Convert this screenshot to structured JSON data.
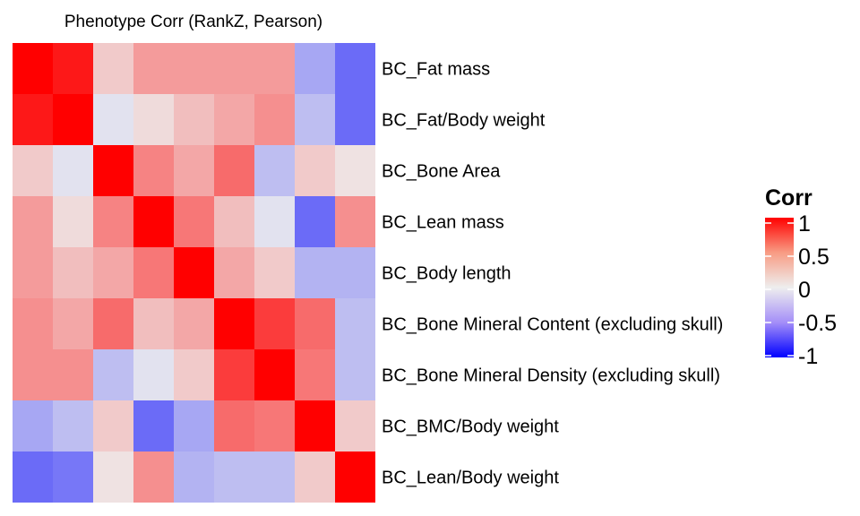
{
  "chart_data": {
    "type": "heatmap",
    "title": "Phenotype Corr (RankZ, Pearson)",
    "rows": [
      "BC_Fat mass",
      "BC_Fat/Body weight",
      "BC_Bone Area",
      "BC_Lean mass",
      "BC_Body length",
      "BC_Bone Mineral Content (excluding skull)",
      "BC_Bone Mineral Density (excluding skull)",
      "BC_BMC/Body weight",
      "BC_Lean/Body weight"
    ],
    "values": [
      [
        1.0,
        0.9,
        0.15,
        0.35,
        0.35,
        0.35,
        0.35,
        -0.3,
        -0.55
      ],
      [
        0.9,
        1.0,
        -0.05,
        0.08,
        0.2,
        0.3,
        0.4,
        -0.2,
        -0.55
      ],
      [
        0.15,
        -0.05,
        1.0,
        0.45,
        0.3,
        0.55,
        -0.2,
        0.15,
        0.05
      ],
      [
        0.35,
        0.08,
        0.45,
        1.0,
        0.5,
        0.2,
        -0.05,
        -0.55,
        0.4
      ],
      [
        0.35,
        0.2,
        0.3,
        0.5,
        1.0,
        0.3,
        0.15,
        -0.25,
        -0.25
      ],
      [
        0.4,
        0.3,
        0.55,
        0.2,
        0.3,
        1.0,
        0.75,
        0.55,
        -0.2
      ],
      [
        0.4,
        0.4,
        -0.2,
        -0.05,
        0.15,
        0.75,
        1.0,
        0.5,
        -0.2
      ],
      [
        -0.3,
        -0.2,
        0.15,
        -0.55,
        -0.3,
        0.55,
        0.5,
        1.0,
        0.15
      ],
      [
        -0.55,
        -0.5,
        0.05,
        0.4,
        -0.25,
        -0.2,
        -0.2,
        0.15,
        1.0
      ]
    ],
    "scale": {
      "min": -1,
      "max": 1,
      "low_color": "#0000ff",
      "mid_color": "#eeeeee",
      "high_color": "#ff0000"
    },
    "legend": {
      "title": "Corr",
      "ticks": [
        1,
        0.5,
        0,
        -0.5,
        -1
      ],
      "tick_labels": [
        "1",
        "0.5",
        "0",
        "-0.5",
        "-1"
      ],
      "position": "right"
    }
  }
}
